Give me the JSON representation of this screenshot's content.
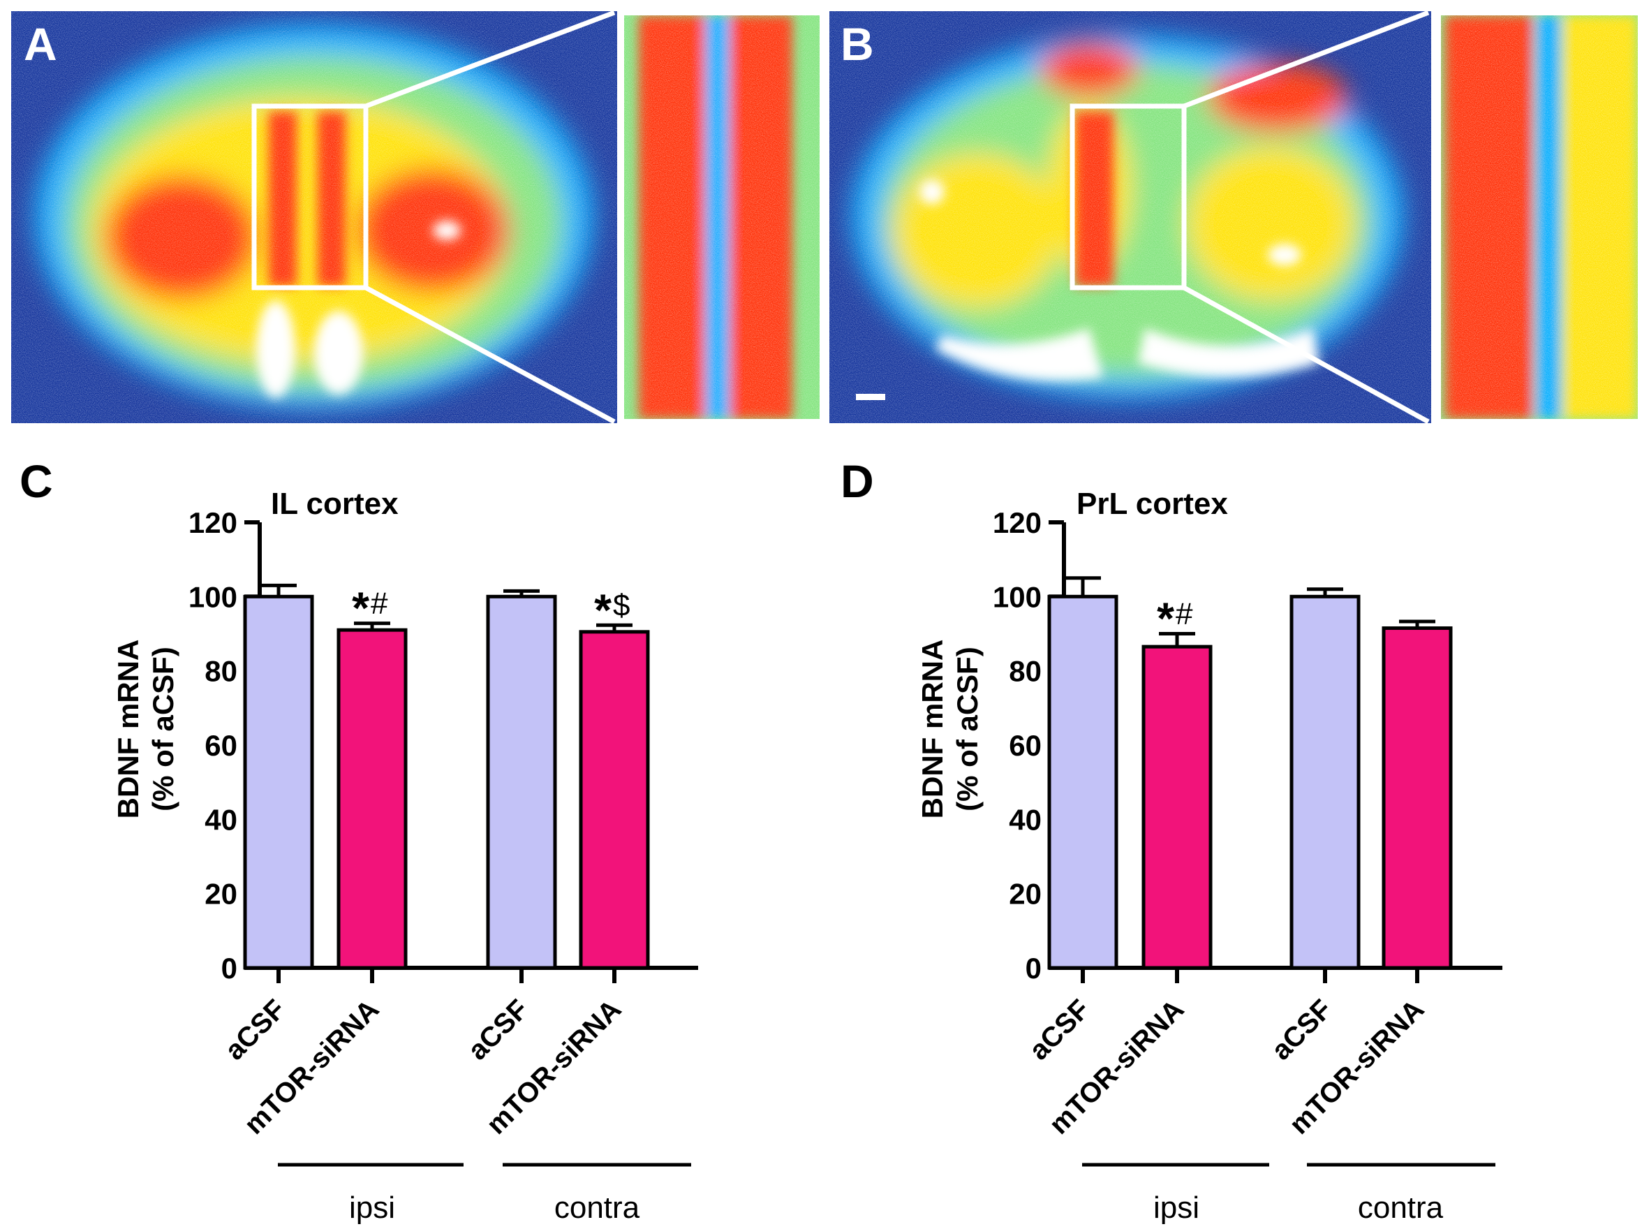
{
  "colors": {
    "acsf": "#c3c2f7",
    "sirna": "#f2137a",
    "ink": "#000000",
    "heat_bg": "#0e2f9a",
    "heat_low": "#00aaff",
    "heat_mid": "#7fe37a",
    "heat_high": "#ffe100",
    "heat_top": "#ff2a00",
    "heat_max": "#ffffff"
  },
  "panels": {
    "a": {
      "label": "A"
    },
    "b": {
      "label": "B"
    },
    "c": {
      "label": "C"
    },
    "d": {
      "label": "D"
    }
  },
  "chart_data": [
    {
      "panel": "C",
      "type": "bar",
      "title": "IL cortex",
      "ylabel_lines": [
        "BDNF mRNA",
        "(% of aCSF)"
      ],
      "ylim": [
        0,
        120
      ],
      "yticks": [
        0,
        20,
        40,
        60,
        80,
        100,
        120
      ],
      "categories": [
        "aCSF",
        "mTOR-siRNA",
        "aCSF",
        "mTOR-siRNA"
      ],
      "groups": [
        "ipsi",
        "contra"
      ],
      "values": [
        100,
        91,
        100,
        90.5
      ],
      "errors": [
        3,
        1.8,
        1.5,
        1.8
      ],
      "annotations": [
        {
          "bar": 1,
          "star": "*",
          "mark": "#"
        },
        {
          "bar": 3,
          "star": "*",
          "mark": "$"
        }
      ]
    },
    {
      "panel": "D",
      "type": "bar",
      "title": "PrL cortex",
      "ylabel_lines": [
        "BDNF mRNA",
        "(% of aCSF)"
      ],
      "ylim": [
        0,
        120
      ],
      "yticks": [
        0,
        20,
        40,
        60,
        80,
        100,
        120
      ],
      "categories": [
        "aCSF",
        "mTOR-siRNA",
        "aCSF",
        "mTOR-siRNA"
      ],
      "groups": [
        "ipsi",
        "contra"
      ],
      "values": [
        100,
        86.5,
        100,
        91.5
      ],
      "errors": [
        5,
        3.5,
        2,
        1.8
      ],
      "annotations": [
        {
          "bar": 1,
          "star": "*",
          "mark": "#"
        }
      ]
    }
  ]
}
